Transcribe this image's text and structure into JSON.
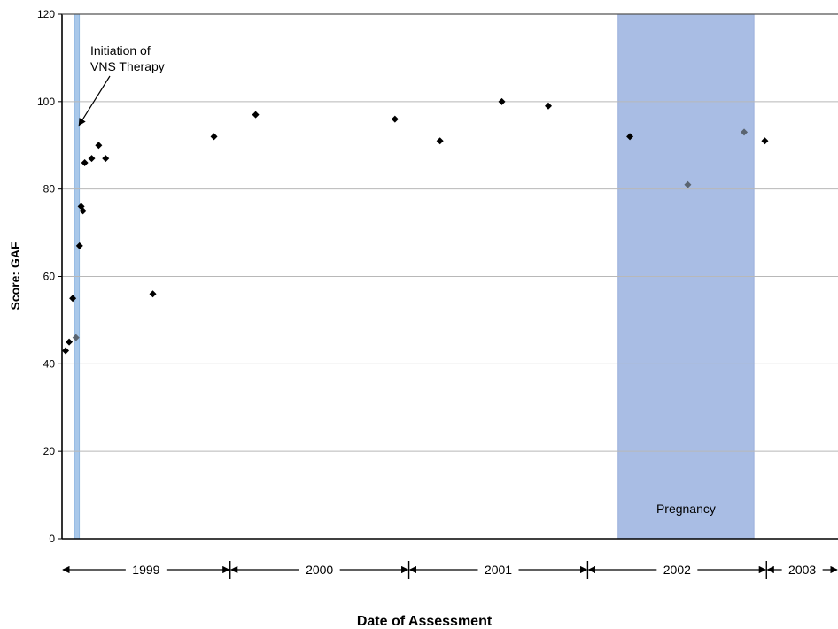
{
  "chart_data": {
    "type": "scatter",
    "title": "",
    "xlabel": "Date of Assessment",
    "ylabel": "Score:  GAF",
    "ylim": [
      0,
      120
    ],
    "yticks": [
      0,
      20,
      40,
      60,
      80,
      100,
      120
    ],
    "xlim": [
      1998.98,
      2003.32
    ],
    "grid": "horizontal",
    "legend": "none",
    "colors": {
      "point": "#000000",
      "point_gray": "#5a6470",
      "vns_band": "#a9c8ea",
      "pregnancy_band": "#a9bde4",
      "grid": "#b8b8b8"
    },
    "series": [
      {
        "marker": "diamond",
        "points": [
          {
            "x": 1999.0,
            "y": 43
          },
          {
            "x": 1999.02,
            "y": 45
          },
          {
            "x": 1999.04,
            "y": 55
          },
          {
            "x": 1999.078,
            "y": 67
          },
          {
            "x": 1999.087,
            "y": 76
          },
          {
            "x": 1999.097,
            "y": 75
          },
          {
            "x": 1999.107,
            "y": 86
          },
          {
            "x": 1999.146,
            "y": 87
          },
          {
            "x": 1999.185,
            "y": 90
          },
          {
            "x": 1999.224,
            "y": 87
          },
          {
            "x": 1999.488,
            "y": 56
          },
          {
            "x": 1999.83,
            "y": 92
          },
          {
            "x": 2000.063,
            "y": 97
          },
          {
            "x": 2000.842,
            "y": 96
          },
          {
            "x": 2001.094,
            "y": 91
          },
          {
            "x": 2001.44,
            "y": 100
          },
          {
            "x": 2001.7,
            "y": 99
          },
          {
            "x": 2002.156,
            "y": 92
          },
          {
            "x": 2002.911,
            "y": 91
          }
        ]
      },
      {
        "marker": "diamond",
        "color": "gray",
        "points": [
          {
            "x": 1999.058,
            "y": 46
          },
          {
            "x": 2002.48,
            "y": 81
          },
          {
            "x": 2002.795,
            "y": 93
          }
        ]
      }
    ],
    "bands": [
      {
        "name": "vns",
        "x0": 1999.05,
        "x1": 1999.077
      },
      {
        "name": "pregnancy",
        "x0": 2002.09,
        "x1": 2002.85,
        "label": "Pregnancy"
      }
    ],
    "annotations": [
      {
        "lines": [
          "Initiation of",
          "VNS Therapy"
        ],
        "arrow_to": {
          "x": 1999.065,
          "y": 97
        }
      }
    ],
    "year_ranges": [
      {
        "label": "1999",
        "start": 1998.98,
        "end": 1999.92
      },
      {
        "label": "2000",
        "start": 1999.92,
        "end": 2000.92
      },
      {
        "label": "2001",
        "start": 2000.92,
        "end": 2001.92
      },
      {
        "label": "2002",
        "start": 2001.92,
        "end": 2002.92
      },
      {
        "label": "2003",
        "start": 2002.92,
        "end": 2003.32
      }
    ]
  }
}
